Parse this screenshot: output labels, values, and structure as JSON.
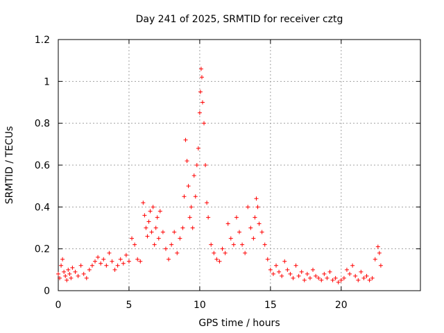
{
  "chart_data": {
    "type": "scatter",
    "title": "Day 241 of 2025, SRMTID for receiver cztg",
    "xlabel": "GPS time / hours",
    "ylabel": "SRMTID / TECUs",
    "xlim": [
      0,
      25.6
    ],
    "ylim": [
      0,
      1.2
    ],
    "xticks": [
      0,
      5,
      10,
      15,
      20
    ],
    "xtick_labels": [
      "0",
      "5",
      "10",
      "15",
      "20"
    ],
    "yticks": [
      0,
      0.2,
      0.4,
      0.6,
      0.8,
      1.0,
      1.2
    ],
    "ytick_labels": [
      "0",
      "0.2",
      "0.4",
      "0.6",
      "0.8",
      "1",
      "1.2"
    ],
    "grid": true,
    "marker": "plus",
    "color": "#ff0000",
    "series": [
      {
        "name": "SRMTID",
        "x": [
          0.0,
          0.1,
          0.2,
          0.3,
          0.4,
          0.5,
          0.6,
          0.7,
          0.8,
          0.9,
          1.0,
          1.2,
          1.4,
          1.6,
          1.8,
          2.0,
          2.2,
          2.4,
          2.6,
          2.8,
          3.0,
          3.2,
          3.4,
          3.6,
          3.8,
          4.0,
          4.2,
          4.4,
          4.6,
          4.8,
          5.0,
          5.2,
          5.4,
          5.6,
          5.8,
          6.0,
          6.1,
          6.2,
          6.3,
          6.4,
          6.5,
          6.6,
          6.7,
          6.8,
          6.9,
          7.0,
          7.1,
          7.2,
          7.4,
          7.6,
          7.8,
          8.0,
          8.2,
          8.4,
          8.6,
          8.8,
          8.9,
          9.0,
          9.1,
          9.2,
          9.3,
          9.4,
          9.5,
          9.6,
          9.7,
          9.8,
          9.9,
          10.0,
          10.05,
          10.1,
          10.15,
          10.2,
          10.3,
          10.4,
          10.5,
          10.6,
          10.8,
          11.0,
          11.2,
          11.4,
          11.6,
          11.8,
          12.0,
          12.2,
          12.4,
          12.6,
          12.8,
          13.0,
          13.2,
          13.4,
          13.6,
          13.8,
          13.9,
          14.0,
          14.1,
          14.2,
          14.4,
          14.6,
          14.8,
          15.0,
          15.2,
          15.4,
          15.6,
          15.8,
          16.0,
          16.2,
          16.4,
          16.6,
          16.8,
          17.0,
          17.2,
          17.4,
          17.6,
          17.8,
          18.0,
          18.2,
          18.4,
          18.6,
          18.8,
          19.0,
          19.2,
          19.4,
          19.6,
          19.8,
          20.0,
          20.2,
          20.4,
          20.6,
          20.8,
          21.0,
          21.2,
          21.4,
          21.6,
          21.8,
          22.0,
          22.2,
          22.4,
          22.6,
          22.7,
          22.8
        ],
        "y": [
          0.08,
          0.06,
          0.12,
          0.15,
          0.09,
          0.07,
          0.05,
          0.1,
          0.08,
          0.06,
          0.11,
          0.09,
          0.07,
          0.12,
          0.08,
          0.06,
          0.1,
          0.12,
          0.14,
          0.16,
          0.13,
          0.15,
          0.12,
          0.18,
          0.14,
          0.1,
          0.12,
          0.15,
          0.13,
          0.17,
          0.14,
          0.25,
          0.22,
          0.15,
          0.14,
          0.42,
          0.36,
          0.3,
          0.26,
          0.33,
          0.38,
          0.28,
          0.4,
          0.22,
          0.3,
          0.35,
          0.25,
          0.38,
          0.28,
          0.2,
          0.15,
          0.22,
          0.28,
          0.18,
          0.25,
          0.3,
          0.45,
          0.72,
          0.62,
          0.5,
          0.35,
          0.4,
          0.3,
          0.55,
          0.45,
          0.6,
          0.68,
          0.85,
          0.95,
          1.06,
          1.02,
          0.9,
          0.8,
          0.6,
          0.42,
          0.35,
          0.22,
          0.18,
          0.15,
          0.14,
          0.2,
          0.18,
          0.32,
          0.25,
          0.22,
          0.35,
          0.28,
          0.22,
          0.18,
          0.4,
          0.3,
          0.25,
          0.35,
          0.44,
          0.4,
          0.32,
          0.28,
          0.22,
          0.15,
          0.1,
          0.08,
          0.12,
          0.09,
          0.07,
          0.14,
          0.1,
          0.08,
          0.06,
          0.12,
          0.07,
          0.09,
          0.05,
          0.08,
          0.06,
          0.1,
          0.07,
          0.06,
          0.05,
          0.08,
          0.06,
          0.09,
          0.05,
          0.06,
          0.04,
          0.05,
          0.06,
          0.1,
          0.08,
          0.12,
          0.07,
          0.05,
          0.09,
          0.06,
          0.07,
          0.05,
          0.06,
          0.15,
          0.21,
          0.18,
          0.12
        ]
      }
    ]
  }
}
